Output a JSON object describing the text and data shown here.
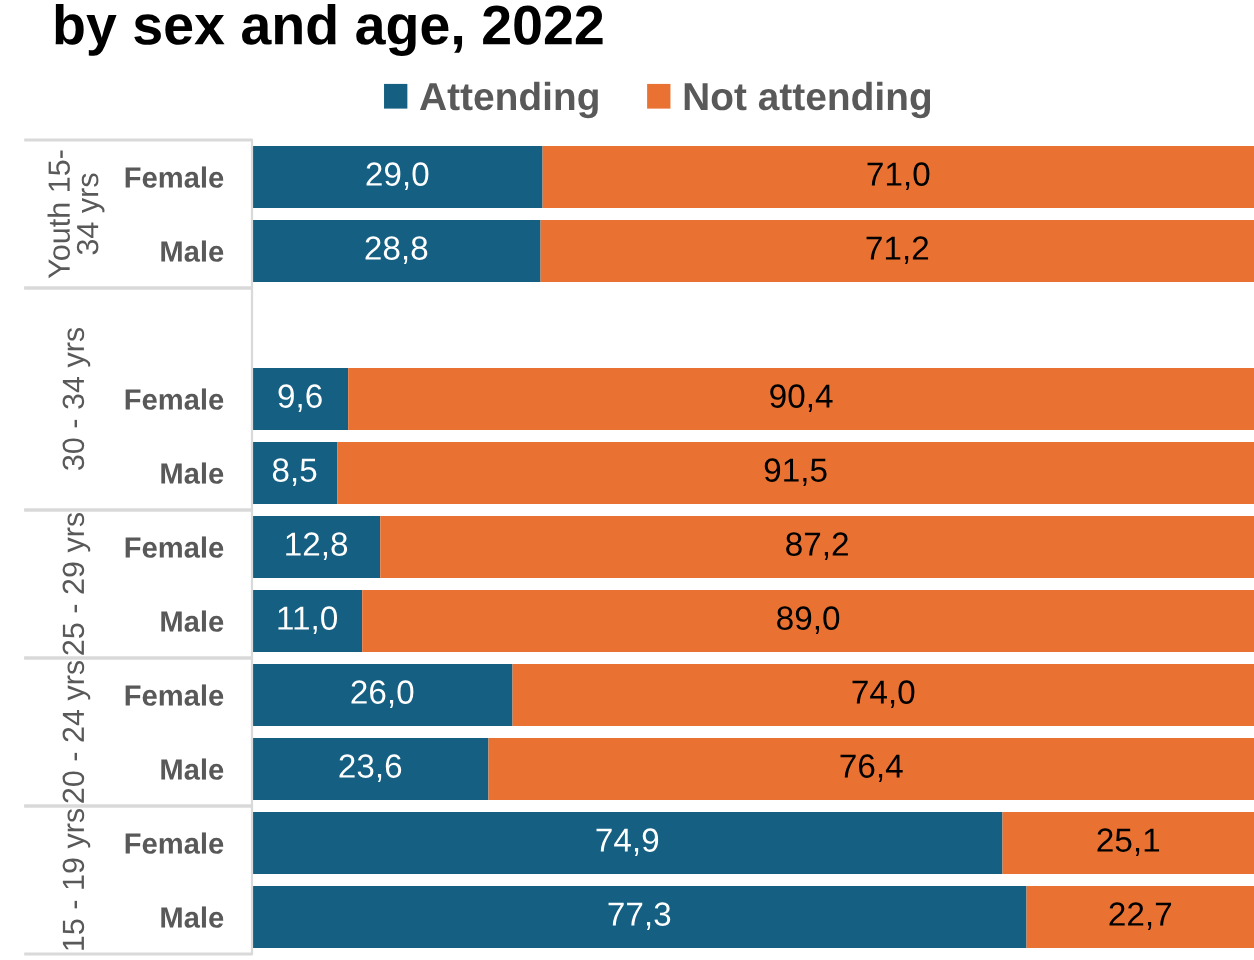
{
  "chart_data": [
    {
      "type": "bar",
      "orientation": "horizontal",
      "stacked": true,
      "title": "by sex and age, 2022",
      "ylabel": "Youth 15-\n34 yrs",
      "categories": [
        "Female",
        "Male"
      ],
      "xlim": [
        0,
        100
      ],
      "tick_labels": "y",
      "legend": "top",
      "series": [
        {
          "name": "Attending",
          "color": "#156082",
          "values": [
            29.0,
            28.8
          ],
          "value_labels": [
            "29,0",
            "28,8"
          ]
        },
        {
          "name": "Not attending",
          "color": "#e97132",
          "values": [
            71.0,
            71.2
          ],
          "value_labels": [
            "71,0",
            "71,2"
          ]
        }
      ]
    },
    {
      "type": "bar",
      "orientation": "horizontal",
      "stacked": true,
      "ylabel": "30 - 34 yrs",
      "categories": [
        null,
        "Female",
        "Male"
      ],
      "xlim": [
        0,
        100
      ],
      "tick_labels": "y",
      "series": [
        {
          "color": "#156082",
          "values": [
            null,
            9.6,
            8.5
          ],
          "value_labels": [
            null,
            "9,6",
            "8,5"
          ]
        },
        {
          "color": "#e97132",
          "values": [
            null,
            90.4,
            91.5
          ],
          "value_labels": [
            null,
            "90,4",
            "91,5"
          ]
        }
      ]
    },
    {
      "type": "bar",
      "orientation": "horizontal",
      "stacked": true,
      "ylabel": "25 - 29 yrs",
      "categories": [
        "Female",
        "Male"
      ],
      "xlim": [
        0,
        100
      ],
      "tick_labels": "y",
      "series": [
        {
          "color": "#156082",
          "values": [
            12.8,
            11.0
          ],
          "value_labels": [
            "12,8",
            "11,0"
          ]
        },
        {
          "color": "#e97132",
          "values": [
            87.2,
            89.0
          ],
          "value_labels": [
            "87,2",
            "89,0"
          ]
        }
      ]
    },
    {
      "type": "bar",
      "orientation": "horizontal",
      "stacked": true,
      "ylabel": "20 - 24 yrs",
      "categories": [
        "Female",
        "Male"
      ],
      "xlim": [
        0,
        100
      ],
      "tick_labels": "y",
      "series": [
        {
          "color": "#156082",
          "values": [
            26.0,
            23.6
          ],
          "value_labels": [
            "26,0",
            "23,6"
          ]
        },
        {
          "color": "#e97132",
          "values": [
            74.0,
            76.4
          ],
          "value_labels": [
            "74,0",
            "76,4"
          ]
        }
      ]
    },
    {
      "type": "bar",
      "orientation": "horizontal",
      "stacked": true,
      "ylabel": "15 - 19 yrs",
      "categories": [
        "Female",
        "Male"
      ],
      "xlim": [
        0,
        100
      ],
      "tick_labels": "y",
      "series": [
        {
          "color": "#156082",
          "values": [
            74.9,
            77.3
          ],
          "value_labels": [
            "74,9",
            "77,3"
          ]
        },
        {
          "color": "#e97132",
          "values": [
            25.1,
            22.7
          ],
          "value_labels": [
            "25,1",
            "22,7"
          ]
        }
      ]
    }
  ]
}
